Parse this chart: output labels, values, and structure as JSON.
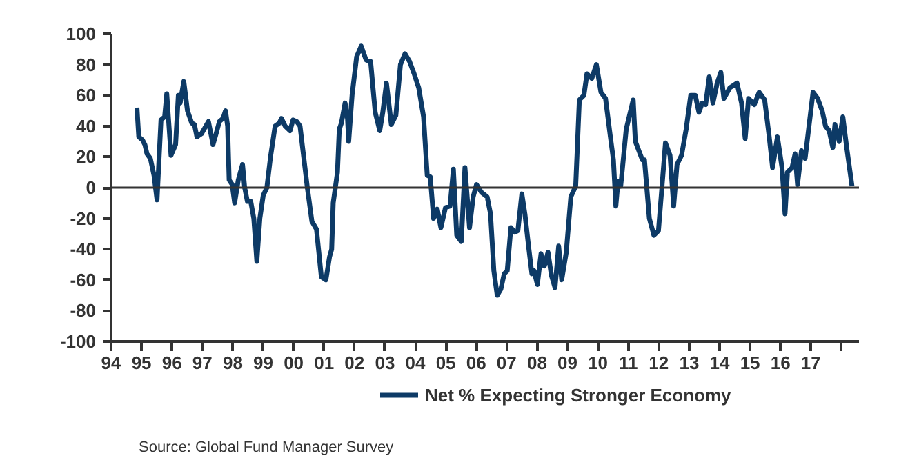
{
  "chart_data": {
    "type": "line",
    "x": [
      1994.85,
      1994.91,
      1995.03,
      1995.11,
      1995.18,
      1995.29,
      1995.41,
      1995.51,
      1995.64,
      1995.76,
      1995.83,
      1995.97,
      1996.12,
      1996.21,
      1996.27,
      1996.39,
      1996.51,
      1996.65,
      1996.74,
      1996.82,
      1996.97,
      1997.2,
      1997.35,
      1997.45,
      1997.56,
      1997.68,
      1997.76,
      1997.83,
      1997.88,
      1997.98,
      1998.06,
      1998.18,
      1998.32,
      1998.39,
      1998.48,
      1998.59,
      1998.69,
      1998.79,
      1998.89,
      1999.0,
      1999.12,
      1999.24,
      1999.39,
      1999.53,
      1999.6,
      1999.72,
      1999.88,
      1999.98,
      2000.1,
      2000.21,
      2000.33,
      2000.45,
      2000.6,
      2000.75,
      2000.91,
      2001.06,
      2001.18,
      2001.25,
      2001.3,
      2001.44,
      2001.5,
      2001.57,
      2001.69,
      2001.77,
      2001.81,
      2001.92,
      2002.07,
      2002.22,
      2002.38,
      2002.53,
      2002.68,
      2002.83,
      2002.93,
      2003.05,
      2003.21,
      2003.36,
      2003.51,
      2003.66,
      2003.81,
      2003.96,
      2004.11,
      2004.27,
      2004.39,
      2004.49,
      2004.6,
      2004.72,
      2004.84,
      2004.99,
      2005.14,
      2005.25,
      2005.36,
      2005.51,
      2005.63,
      2005.78,
      2005.9,
      2006.01,
      2006.17,
      2006.36,
      2006.47,
      2006.58,
      2006.69,
      2006.81,
      2006.92,
      2007.02,
      2007.14,
      2007.27,
      2007.37,
      2007.5,
      2007.6,
      2007.72,
      2007.83,
      2007.9,
      2008.01,
      2008.13,
      2008.24,
      2008.36,
      2008.47,
      2008.59,
      2008.71,
      2008.81,
      2008.96,
      2009.11,
      2009.27,
      2009.39,
      2009.54,
      2009.64,
      2009.8,
      2009.95,
      2010.1,
      2010.25,
      2010.41,
      2010.51,
      2010.59,
      2010.66,
      2010.75,
      2010.93,
      2011.16,
      2011.23,
      2011.46,
      2011.53,
      2011.69,
      2011.84,
      2011.99,
      2012.22,
      2012.37,
      2012.49,
      2012.6,
      2012.75,
      2012.9,
      2013.05,
      2013.2,
      2013.32,
      2013.43,
      2013.54,
      2013.66,
      2013.78,
      2013.92,
      2014.04,
      2014.14,
      2014.34,
      2014.57,
      2014.72,
      2014.84,
      2014.95,
      2015.14,
      2015.3,
      2015.48,
      2015.63,
      2015.74,
      2015.9,
      2016.05,
      2016.15,
      2016.23,
      2016.38,
      2016.48,
      2016.56,
      2016.69,
      2016.81,
      2017.07,
      2017.22,
      2017.37,
      2017.48,
      2017.6,
      2017.72,
      2017.79,
      2017.93,
      2018.05,
      2018.17,
      2018.35
    ],
    "series": [
      {
        "name": "Net % Expecting Stronger Economy",
        "color": "#0d3a66",
        "values": [
          52,
          33,
          31,
          28,
          22,
          19,
          8,
          -8,
          44,
          46,
          61,
          21,
          28,
          60,
          55,
          69,
          50,
          42,
          41,
          33,
          35,
          43,
          28,
          35,
          43,
          45,
          50,
          40,
          5,
          2,
          -10,
          5,
          15,
          0,
          -9,
          -9,
          -20,
          -48,
          -20,
          -5,
          0,
          20,
          40,
          42,
          45,
          40,
          37,
          44,
          43,
          40,
          20,
          0,
          -22,
          -27,
          -58,
          -60,
          -45,
          -40,
          -10,
          10,
          38,
          42,
          55,
          45,
          30,
          60,
          85,
          92,
          83,
          82,
          49,
          37,
          49,
          68,
          41,
          47,
          80,
          87,
          82,
          74,
          65,
          46,
          8,
          7,
          -20,
          -14,
          -26,
          -13,
          -12,
          12,
          -31,
          -35,
          13,
          -26,
          -6,
          2,
          -3,
          -6,
          -17,
          -54,
          -70,
          -66,
          -56,
          -54,
          -26,
          -29,
          -28,
          -4,
          -17,
          -38,
          -56,
          -54,
          -63,
          -43,
          -51,
          -42,
          -57,
          -65,
          -38,
          -60,
          -42,
          -6,
          1,
          57,
          60,
          74,
          71,
          80,
          62,
          58,
          33,
          18,
          -12,
          4,
          1,
          38,
          57,
          30,
          18,
          18,
          -20,
          -31,
          -28,
          29,
          21,
          -12,
          15,
          21,
          38,
          60,
          60,
          49,
          55,
          54,
          72,
          55,
          68,
          75,
          58,
          65,
          68,
          55,
          32,
          58,
          54,
          62,
          57,
          33,
          13,
          33,
          13,
          -17,
          10,
          13,
          22,
          2,
          24,
          19,
          62,
          58,
          50,
          40,
          37,
          26,
          41,
          30,
          46,
          27,
          1
        ]
      }
    ],
    "xlim": [
      1994,
      2018.58
    ],
    "xticks": [
      {
        "value": 1994,
        "label": "94"
      },
      {
        "value": 1995,
        "label": "95"
      },
      {
        "value": 1996,
        "label": "96"
      },
      {
        "value": 1997,
        "label": "97"
      },
      {
        "value": 1998,
        "label": "98"
      },
      {
        "value": 1999,
        "label": "99"
      },
      {
        "value": 2000,
        "label": "00"
      },
      {
        "value": 2001,
        "label": "01"
      },
      {
        "value": 2002,
        "label": "02"
      },
      {
        "value": 2003,
        "label": "03"
      },
      {
        "value": 2004,
        "label": "04"
      },
      {
        "value": 2005,
        "label": "05"
      },
      {
        "value": 2006,
        "label": "06"
      },
      {
        "value": 2007,
        "label": "07"
      },
      {
        "value": 2008,
        "label": "08"
      },
      {
        "value": 2009,
        "label": "09"
      },
      {
        "value": 2010,
        "label": "10"
      },
      {
        "value": 2011,
        "label": "11"
      },
      {
        "value": 2012,
        "label": "12"
      },
      {
        "value": 2013,
        "label": "13"
      },
      {
        "value": 2014,
        "label": "14"
      },
      {
        "value": 2015,
        "label": "15"
      },
      {
        "value": 2016,
        "label": "16"
      },
      {
        "value": 2017,
        "label": "17"
      },
      {
        "value": 2018,
        "label": null
      }
    ],
    "ylim": [
      -100,
      100
    ],
    "yticks": [
      -100,
      -80,
      -60,
      -40,
      -20,
      0,
      20,
      40,
      60,
      80,
      100
    ],
    "ref_lines": [
      {
        "axis": "y",
        "value": 0,
        "color": "#333333"
      }
    ],
    "grid": false,
    "legend": "bottom",
    "marker": "none",
    "line_style": "solid",
    "annotations": [
      "Source: Global Fund Manager Survey"
    ]
  }
}
